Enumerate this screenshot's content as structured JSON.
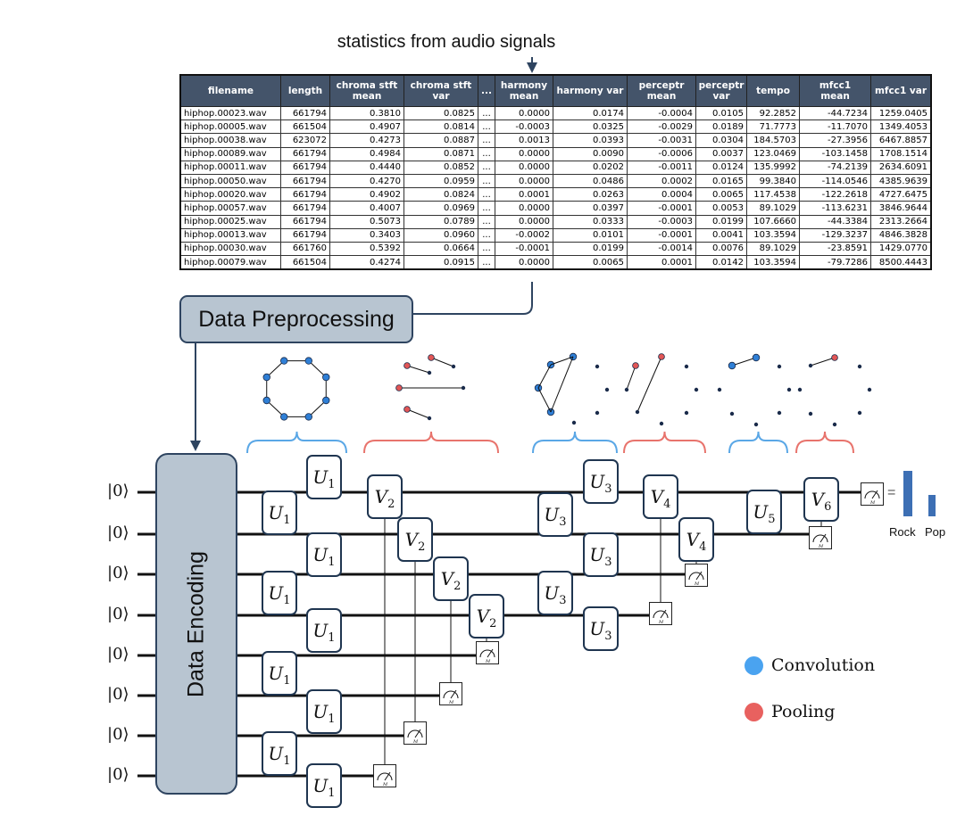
{
  "title": "statistics from audio signals",
  "table": {
    "headers": [
      "filename",
      "length",
      "chroma stft\nmean",
      "chroma stft\nvar",
      "...",
      "harmony\nmean",
      "harmony var",
      "perceptr\nmean",
      "perceptr\nvar",
      "tempo",
      "mfcc1\nmean",
      "mfcc1 var"
    ],
    "rows": [
      [
        "hiphop.00023.wav",
        "661794",
        "0.3810",
        "0.0825",
        "...",
        "0.0000",
        "0.0174",
        "-0.0004",
        "0.0105",
        "92.2852",
        "-44.7234",
        "1259.0405"
      ],
      [
        "hiphop.00005.wav",
        "661504",
        "0.4907",
        "0.0814",
        "...",
        "-0.0003",
        "0.0325",
        "-0.0029",
        "0.0189",
        "71.7773",
        "-11.7070",
        "1349.4053"
      ],
      [
        "hiphop.00038.wav",
        "623072",
        "0.4273",
        "0.0887",
        "...",
        "0.0013",
        "0.0393",
        "-0.0031",
        "0.0304",
        "184.5703",
        "-27.3956",
        "6467.8857"
      ],
      [
        "hiphop.00089.wav",
        "661794",
        "0.4984",
        "0.0871",
        "...",
        "0.0000",
        "0.0090",
        "-0.0006",
        "0.0037",
        "123.0469",
        "-103.1458",
        "1708.1514"
      ],
      [
        "hiphop.00011.wav",
        "661794",
        "0.4440",
        "0.0852",
        "...",
        "0.0000",
        "0.0202",
        "-0.0011",
        "0.0124",
        "135.9992",
        "-74.2139",
        "2634.6091"
      ],
      [
        "hiphop.00050.wav",
        "661794",
        "0.4270",
        "0.0959",
        "...",
        "0.0000",
        "0.0486",
        "0.0002",
        "0.0165",
        "99.3840",
        "-114.0546",
        "4385.9639"
      ],
      [
        "hiphop.00020.wav",
        "661794",
        "0.4902",
        "0.0824",
        "...",
        "0.0001",
        "0.0263",
        "0.0004",
        "0.0065",
        "117.4538",
        "-122.2618",
        "4727.6475"
      ],
      [
        "hiphop.00057.wav",
        "661794",
        "0.4007",
        "0.0969",
        "...",
        "0.0000",
        "0.0397",
        "-0.0001",
        "0.0053",
        "89.1029",
        "-113.6231",
        "3846.9644"
      ],
      [
        "hiphop.00025.wav",
        "661794",
        "0.5073",
        "0.0789",
        "...",
        "0.0000",
        "0.0333",
        "-0.0003",
        "0.0199",
        "107.6660",
        "-44.3384",
        "2313.2664"
      ],
      [
        "hiphop.00013.wav",
        "661794",
        "0.3403",
        "0.0960",
        "...",
        "-0.0002",
        "0.0101",
        "-0.0001",
        "0.0041",
        "103.3594",
        "-129.3237",
        "4846.3828"
      ],
      [
        "hiphop.00030.wav",
        "661760",
        "0.5392",
        "0.0664",
        "...",
        "-0.0001",
        "0.0199",
        "-0.0014",
        "0.0076",
        "89.1029",
        "-23.8591",
        "1429.0770"
      ],
      [
        "hiphop.00079.wav",
        "661504",
        "0.4274",
        "0.0915",
        "...",
        "0.0000",
        "0.0065",
        "0.0001",
        "0.0142",
        "103.3594",
        "-79.7286",
        "8500.4443"
      ]
    ]
  },
  "preprocessing_label": "Data Preprocessing",
  "encoding_label": "Data Encoding",
  "qubit_label": "|0⟩",
  "gates": {
    "u1": {
      "sym": "U",
      "sub": "1"
    },
    "u3": {
      "sym": "U",
      "sub": "3"
    },
    "u5": {
      "sym": "U",
      "sub": "5"
    },
    "v2": {
      "sym": "V",
      "sub": "2"
    },
    "v4": {
      "sym": "V",
      "sub": "4"
    },
    "v6": {
      "sym": "V",
      "sub": "6"
    }
  },
  "measure_label": "M",
  "equals": "=",
  "output": {
    "classes": [
      "Rock",
      "Pop"
    ],
    "bar_color": "#3d6fb4"
  },
  "legend": [
    {
      "label": "Convolution",
      "color": "#4aa3f0"
    },
    {
      "label": "Pooling",
      "color": "#e8615f"
    }
  ],
  "colors": {
    "convolution_node": "#2f7fd6",
    "pooling_node": "#e25656",
    "convolution_brace": "#5aa7e6",
    "pooling_brace": "#e8736c",
    "box_fill": "#b8c5d1",
    "box_border": "#2e4460"
  }
}
